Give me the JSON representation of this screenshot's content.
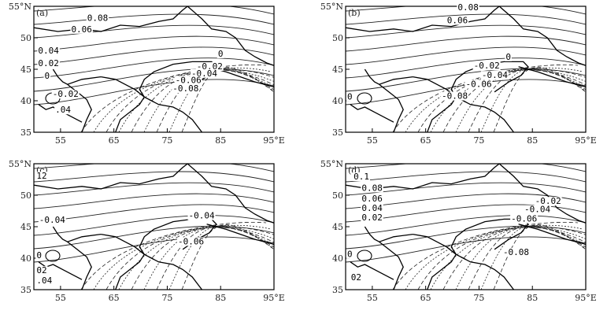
{
  "chart_data": [
    {
      "type": "contour",
      "panel_label": "(a)",
      "x_ticks": [
        "55",
        "65",
        "75",
        "85",
        "95°E"
      ],
      "y_ticks": [
        "55°N",
        "50",
        "45",
        "40",
        "35"
      ],
      "xlim": [
        50,
        95
      ],
      "ylim": [
        35,
        55
      ],
      "contour_labels": [
        {
          "text": "0.08",
          "lon": 60,
          "lat": 52.7
        },
        {
          "text": "0.06",
          "lon": 57,
          "lat": 50.9
        },
        {
          "text": "0.04",
          "lon": 50.8,
          "lat": 47.5
        },
        {
          "text": "0.02",
          "lon": 50.8,
          "lat": 45.5
        },
        {
          "text": "0",
          "lon": 52,
          "lat": 43.5
        },
        {
          "text": "0",
          "lon": 84.5,
          "lat": 47
        },
        {
          "text": "-0.02",
          "lon": 80.5,
          "lat": 45
        },
        {
          "text": "-0.04",
          "lon": 79.5,
          "lat": 43.9
        },
        {
          "text": "-0.06",
          "lon": 76.5,
          "lat": 42.8
        },
        {
          "text": "-0.08",
          "lon": 76,
          "lat": 41.5
        },
        {
          "text": "-0.02",
          "lon": 53.5,
          "lat": 40.6
        },
        {
          "text": ".04",
          "lon": 54,
          "lat": 38.1
        }
      ]
    },
    {
      "type": "contour",
      "panel_label": "(b)",
      "x_ticks": [
        "55",
        "65",
        "75",
        "85",
        "95°E"
      ],
      "y_ticks": [
        "55°N",
        "50",
        "45",
        "40",
        "35"
      ],
      "xlim": [
        50,
        95
      ],
      "ylim": [
        35,
        55
      ],
      "contour_labels": [
        {
          "text": "0.08",
          "lon": 71,
          "lat": 54.4
        },
        {
          "text": "0.06",
          "lon": 69,
          "lat": 52.3
        },
        {
          "text": "0",
          "lon": 80,
          "lat": 46.5
        },
        {
          "text": "-0.02",
          "lon": 74,
          "lat": 45.1
        },
        {
          "text": "-0.04",
          "lon": 75.5,
          "lat": 43.6
        },
        {
          "text": "-0.06",
          "lon": 72.5,
          "lat": 42.2
        },
        {
          "text": "-0.08",
          "lon": 68,
          "lat": 40.3
        },
        {
          "text": "0",
          "lon": 50.3,
          "lat": 40.2
        }
      ]
    },
    {
      "type": "contour",
      "panel_label": "(c)",
      "x_ticks": [
        "55",
        "65",
        "75",
        "85",
        "95°E"
      ],
      "y_ticks": [
        "55°N",
        "50",
        "45",
        "40",
        "35"
      ],
      "xlim": [
        50,
        95
      ],
      "ylim": [
        35,
        55
      ],
      "contour_labels": [
        {
          "text": "12",
          "lon": 50.5,
          "lat": 52.6
        },
        {
          "text": "-0.04",
          "lon": 51,
          "lat": 45.6
        },
        {
          "text": "-0.04",
          "lon": 79,
          "lat": 46.3
        },
        {
          "text": "-0.06",
          "lon": 77,
          "lat": 42.2
        },
        {
          "text": "0",
          "lon": 50.5,
          "lat": 40
        },
        {
          "text": "02",
          "lon": 50.5,
          "lat": 37.6
        },
        {
          "text": ".04",
          "lon": 50.5,
          "lat": 36
        }
      ]
    },
    {
      "type": "contour",
      "panel_label": "(d)",
      "x_ticks": [
        "55",
        "65",
        "75",
        "85",
        "95°E"
      ],
      "y_ticks": [
        "55°N",
        "50",
        "45",
        "40",
        "35"
      ],
      "xlim": [
        50,
        95
      ],
      "ylim": [
        35,
        55
      ],
      "contour_labels": [
        {
          "text": "0.1",
          "lon": 51.5,
          "lat": 52.5
        },
        {
          "text": "0.08",
          "lon": 53,
          "lat": 50.7
        },
        {
          "text": "0.06",
          "lon": 53,
          "lat": 49
        },
        {
          "text": "0.04",
          "lon": 53,
          "lat": 47.5
        },
        {
          "text": "0.02",
          "lon": 53,
          "lat": 46
        },
        {
          "text": "-0.02",
          "lon": 85.5,
          "lat": 48.6
        },
        {
          "text": "-0.04",
          "lon": 83.5,
          "lat": 47.3
        },
        {
          "text": "-0.06",
          "lon": 81,
          "lat": 45.8
        },
        {
          "text": "0",
          "lon": 50.3,
          "lat": 40.2
        },
        {
          "text": "-0.08",
          "lon": 79.5,
          "lat": 40.5
        },
        {
          "text": "02",
          "lon": 51,
          "lat": 36.5
        }
      ]
    }
  ]
}
